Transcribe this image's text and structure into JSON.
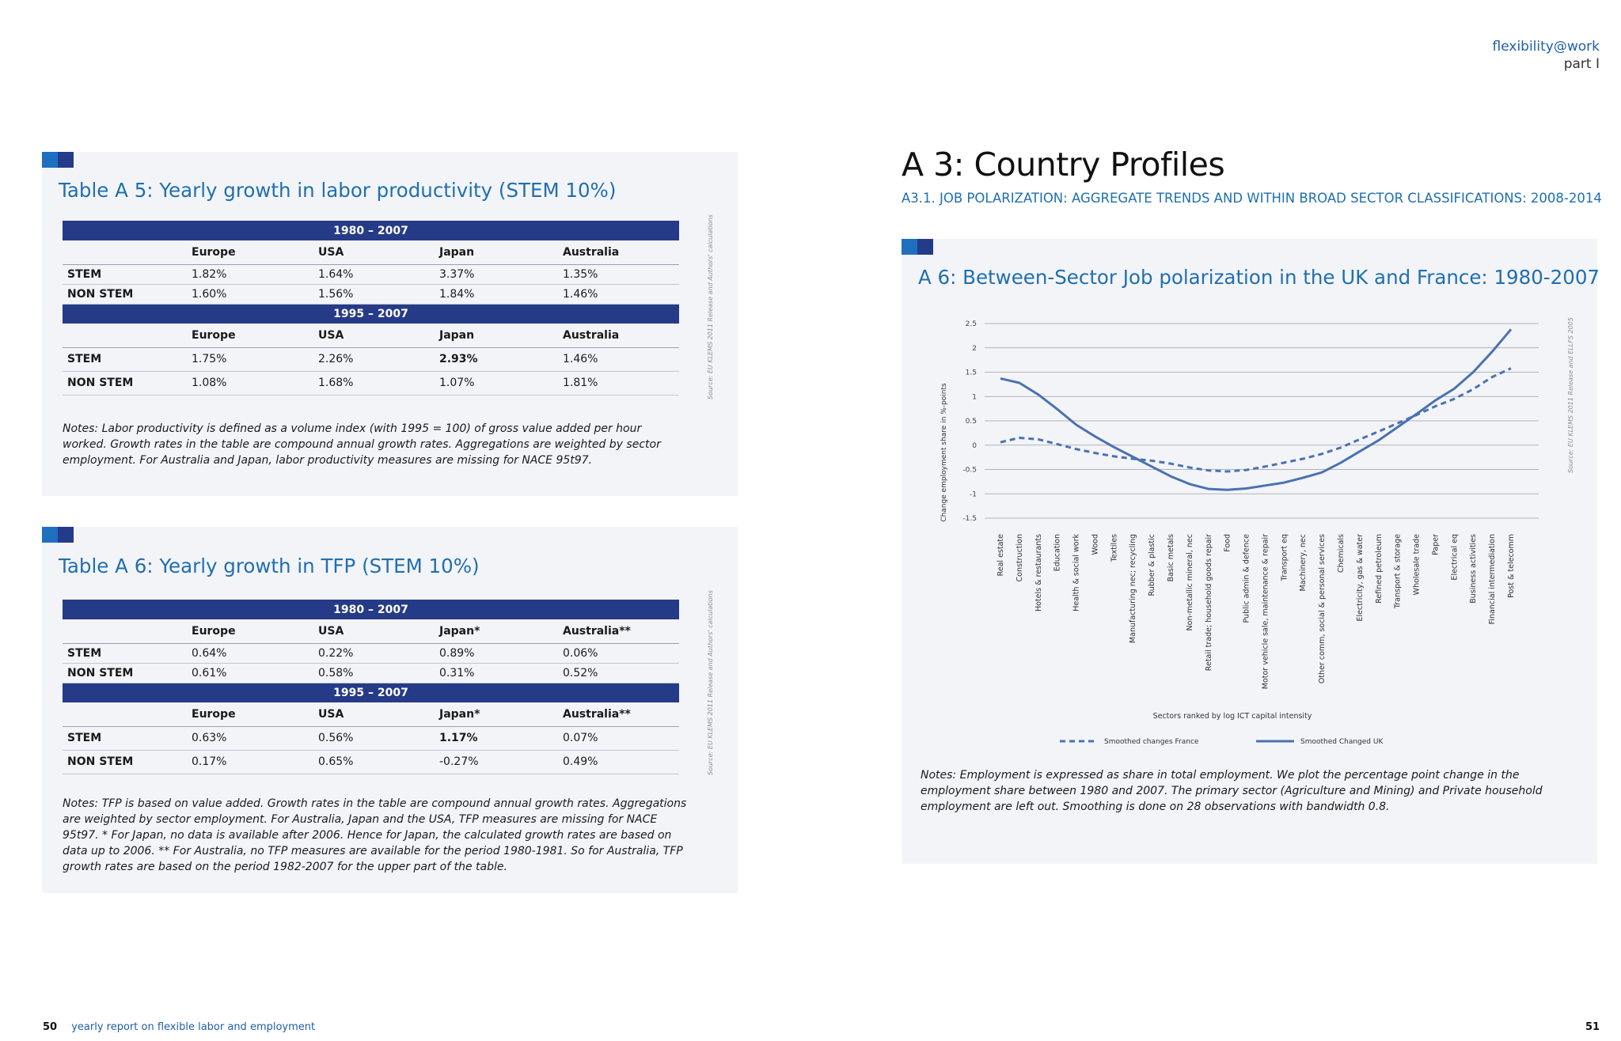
{
  "header": {
    "brand": "flexibility@work",
    "part": "part I"
  },
  "footer": {
    "left_page": "50",
    "left_text": "yearly report on flexible labor and employment",
    "right_page": "51"
  },
  "table_a5": {
    "title": "Table A 5: Yearly growth in labor productivity (STEM 10%)",
    "source": "Source: EU KLEMS 2011 Release and Authors' calculations",
    "columns": [
      "Europe",
      "USA",
      "Japan",
      "Australia"
    ],
    "blocks": [
      {
        "period": "1980 – 2007",
        "rows": [
          {
            "label": "STEM",
            "values": [
              "1.82%",
              "1.64%",
              "3.37%",
              "1.35%"
            ],
            "bold": [
              false,
              false,
              false,
              false
            ]
          },
          {
            "label": "NON STEM",
            "values": [
              "1.60%",
              "1.56%",
              "1.84%",
              "1.46%"
            ],
            "bold": [
              false,
              false,
              false,
              false
            ]
          }
        ]
      },
      {
        "period": "1995 – 2007",
        "rows": [
          {
            "label": "STEM",
            "values": [
              "1.75%",
              "2.26%",
              "2.93%",
              "1.46%"
            ],
            "bold": [
              false,
              false,
              true,
              false
            ]
          },
          {
            "label": "NON STEM",
            "values": [
              "1.08%",
              "1.68%",
              "1.07%",
              "1.81%"
            ],
            "bold": [
              false,
              false,
              false,
              false
            ]
          }
        ]
      }
    ],
    "notes": "Notes: Labor productivity is defined as a volume index (with 1995 = 100) of gross value added per hour worked. Growth rates in the table are compound annual growth rates. Aggregations are weighted by sector employment. For Australia and Japan, labor productivity measures are missing for NACE 95t97."
  },
  "table_a6": {
    "title": "Table A 6: Yearly growth in TFP (STEM 10%)",
    "source": "Source: EU KLEMS 2011 Release and Authors' calculations",
    "columns": [
      "Europe",
      "USA",
      "Japan*",
      "Australia**"
    ],
    "blocks": [
      {
        "period": "1980 – 2007",
        "rows": [
          {
            "label": "STEM",
            "values": [
              "0.64%",
              "0.22%",
              "0.89%",
              "0.06%"
            ],
            "bold": [
              false,
              false,
              false,
              false
            ]
          },
          {
            "label": "NON  STEM",
            "values": [
              "0.61%",
              "0.58%",
              "0.31%",
              "0.52%"
            ],
            "bold": [
              false,
              false,
              false,
              false
            ]
          }
        ]
      },
      {
        "period": "1995 – 2007",
        "rows": [
          {
            "label": "STEM",
            "values": [
              "0.63%",
              "0.56%",
              "1.17%",
              "0.07%"
            ],
            "bold": [
              false,
              false,
              true,
              false
            ]
          },
          {
            "label": "NON STEM",
            "values": [
              "0.17%",
              "0.65%",
              "-0.27%",
              "0.49%"
            ],
            "bold": [
              false,
              false,
              false,
              false
            ]
          }
        ]
      }
    ],
    "notes": "Notes: TFP is based on value added. Growth rates in the table are compound annual growth rates. Aggregations are weighted by sector employment. For Australia, Japan and the USA, TFP measures are missing for NACE 95t97. * For Japan, no data is available after 2006. Hence for Japan, the calculated growth rates are based on data up to 2006. ** For Australia, no TFP measures are available for the period 1980-1981. So for Australia, TFP growth rates are based on the period 1982-2007 for the upper part of the table."
  },
  "section": {
    "title": "A 3: Country Profiles",
    "subtitle": "A3.1. JOB POLARIZATION: AGGREGATE TRENDS AND WITHIN BROAD SECTOR CLASSIFICATIONS: 2008-2014"
  },
  "figure_a6": {
    "title": "A 6: Between-Sector Job polarization in the UK and France: 1980-2007",
    "source": "Source: EU KLEMS 2011 Release and ELLFS 2005",
    "notes": "Notes:  Employment is expressed as share in total employment. We plot the percentage point change in the employment share between 1980 and 2007. The primary sector (Agriculture and Mining) and Private household employment are left out. Smoothing is done on 28 observations with bandwidth 0.8."
  },
  "chart_data": {
    "type": "line",
    "title": "",
    "xlabel": "Sectors ranked by log ICT capital intensity",
    "ylabel": "Change employment share in %-points",
    "ylim": [
      -1.5,
      2.5
    ],
    "yticks": [
      "2.5",
      "2",
      "1.5",
      "1",
      "0.5",
      "0",
      "-0.5",
      "-1",
      "-1.5"
    ],
    "grid": true,
    "legend_position": "bottom",
    "colors": {
      "line": "#4a72b0"
    },
    "categories": [
      "Real estate",
      "Construction",
      "Hotels & restaurants",
      "Education",
      "Health & social work",
      "Wood",
      "Textiles",
      "Manufacturing nec; recycling",
      "Rubber & plastic",
      "Basic metals",
      "Non-metallic mineral, nec",
      "Retail trade; household goods repair",
      "Food",
      "Public admin & defence",
      "Motor vehicle sale, maintenance & repair",
      "Transport eq",
      "Machinery, nec",
      "Other comm, social & personal services",
      "Chemicals",
      "Electricity, gas & water",
      "Refined petroleum",
      "Transport & storage",
      "Wholesale trade",
      "Paper",
      "Electrical eq",
      "Business activities",
      "Financial intermediation",
      "Post & telecomm"
    ],
    "series": [
      {
        "name": "Smoothed changes France",
        "style": "dashed",
        "values": [
          0.06,
          0.15,
          0.12,
          0.02,
          -0.08,
          -0.16,
          -0.23,
          -0.28,
          -0.32,
          -0.38,
          -0.46,
          -0.52,
          -0.54,
          -0.51,
          -0.44,
          -0.36,
          -0.28,
          -0.18,
          -0.05,
          0.12,
          0.28,
          0.45,
          0.62,
          0.8,
          0.95,
          1.15,
          1.4,
          1.58
        ]
      },
      {
        "name": "Smoothed Changed UK",
        "style": "solid",
        "values": [
          1.37,
          1.28,
          1.04,
          0.74,
          0.42,
          0.18,
          -0.04,
          -0.24,
          -0.44,
          -0.64,
          -0.8,
          -0.9,
          -0.92,
          -0.89,
          -0.83,
          -0.77,
          -0.67,
          -0.56,
          -0.36,
          -0.13,
          0.1,
          0.37,
          0.64,
          0.92,
          1.16,
          1.5,
          1.92,
          2.38
        ]
      }
    ]
  }
}
